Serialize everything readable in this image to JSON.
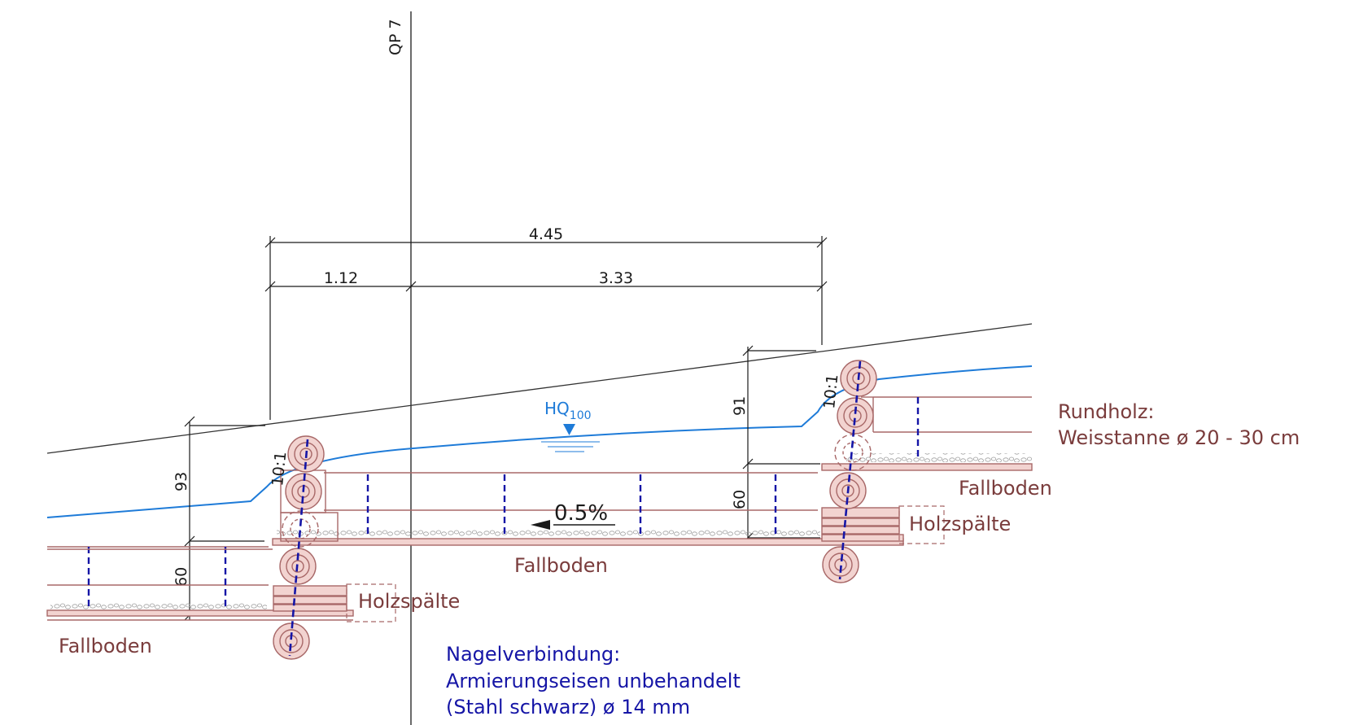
{
  "section_label": "QP 7",
  "dimensions": {
    "total_width": "4.45",
    "left_part": "1.12",
    "right_part": "3.33",
    "left_height": "93",
    "left_step": "60",
    "right_height": "91",
    "right_step": "60"
  },
  "slopes": {
    "left": "10:1",
    "right": "10:1"
  },
  "gradient": "0.5%",
  "water_level": {
    "main": "HQ",
    "subscript": "100"
  },
  "labels": {
    "fallboden_left": "Fallboden",
    "fallboden_mid": "Fallboden",
    "fallboden_right": "Fallboden",
    "holzspaelte_left": "Holzspälte",
    "holzspaelte_right": "Holzspälte"
  },
  "rundholz_note": {
    "line1": "Rundholz:",
    "line2": "Weisstanne ø 20 - 30 cm"
  },
  "nagel_note": {
    "line1": "Nagelverbindung:",
    "line2": "Armierungseisen unbehandelt",
    "line3": "(Stahl schwarz) ø 14 mm"
  },
  "colors": {
    "timber": "#a86868",
    "timber_fill": "#f2d3d0",
    "water": "#1e7bd8",
    "nail": "#1515a6",
    "line": "#1a1a1a"
  }
}
